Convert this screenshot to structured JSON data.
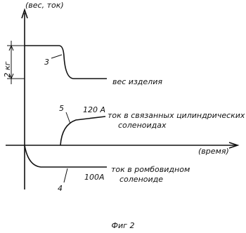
{
  "axes": {
    "y_label": "(вес, ток)",
    "x_label": "(время)",
    "scale_label": "2 кг"
  },
  "curves": [
    {
      "number": "3",
      "label": "вес изделия"
    },
    {
      "number": "5",
      "value_label": "120 A",
      "label_lines": [
        "ток в связанных цилиндрических",
        "соленоидах"
      ]
    },
    {
      "number": "4",
      "value_label": "100A",
      "label_lines": [
        "ток в ромбовидном",
        "соленоиде"
      ]
    }
  ],
  "caption": "Фиг 2"
}
